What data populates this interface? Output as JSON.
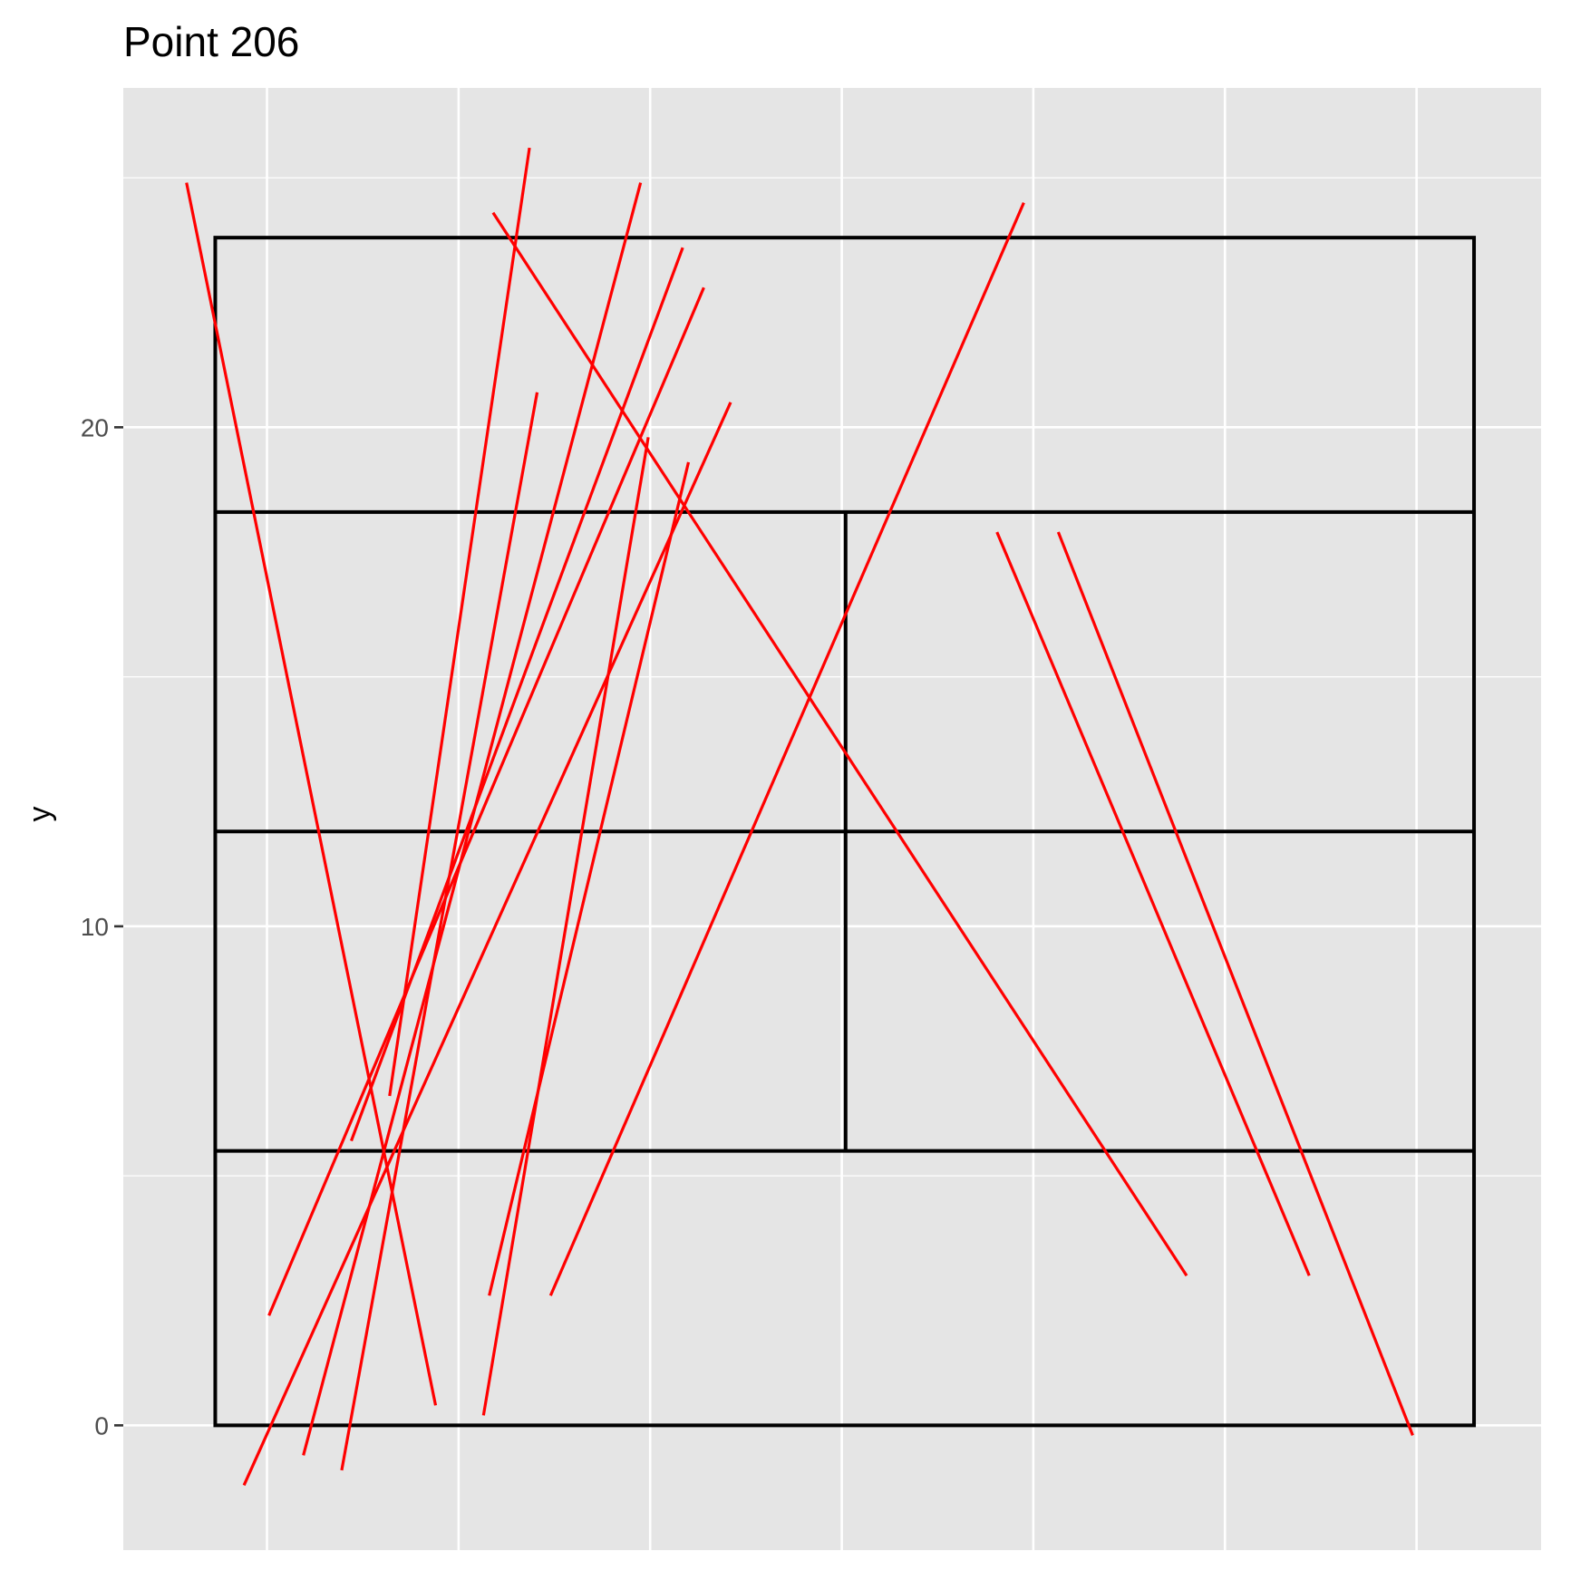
{
  "chart_data": {
    "type": "line",
    "title": "Point 206",
    "xlabel": "",
    "ylabel": "y",
    "xlim": [
      -0.75,
      6.65
    ],
    "ylim": [
      -2.5,
      26.8
    ],
    "x_gridlines": [
      0,
      1,
      2,
      3,
      4,
      5,
      6
    ],
    "y_ticks": [
      0,
      10,
      20
    ],
    "y_minor_gridlines": [
      5,
      15,
      25
    ],
    "grid": true,
    "colors": {
      "panel_background": "#e5e5e5",
      "gridline": "#ffffff",
      "frame": "#000000",
      "segment": "#ff0000",
      "tick_label": "#4d4d4d"
    },
    "frame": {
      "outer": {
        "x": [
          -0.27,
          6.3
        ],
        "y": [
          0,
          23.8
        ]
      },
      "horizontal_rules": [
        {
          "x": [
            -0.27,
            6.3
          ],
          "y": 18.3
        },
        {
          "x": [
            -0.27,
            6.3
          ],
          "y": 11.9
        },
        {
          "x": [
            -0.27,
            6.3
          ],
          "y": 5.5
        }
      ],
      "vertical_rules": [
        {
          "x": 3.02,
          "y": [
            5.5,
            18.3
          ]
        }
      ]
    },
    "series": [
      {
        "x": [
          -0.42,
          0.88
        ],
        "y": [
          24.9,
          0.4
        ]
      },
      {
        "x": [
          0.64,
          1.37
        ],
        "y": [
          6.6,
          25.6
        ]
      },
      {
        "x": [
          1.13,
          1.99
        ],
        "y": [
          0.2,
          19.8
        ]
      },
      {
        "x": [
          -0.12,
          2.42
        ],
        "y": [
          -1.2,
          20.5
        ]
      },
      {
        "x": [
          0.39,
          1.41
        ],
        "y": [
          -0.9,
          20.7
        ]
      },
      {
        "x": [
          0.19,
          1.95
        ],
        "y": [
          -0.6,
          24.9
        ]
      },
      {
        "x": [
          0.44,
          2.17
        ],
        "y": [
          5.7,
          23.6
        ]
      },
      {
        "x": [
          0.01,
          2.28
        ],
        "y": [
          2.2,
          22.8
        ]
      },
      {
        "x": [
          1.16,
          2.2
        ],
        "y": [
          2.6,
          19.3
        ]
      },
      {
        "x": [
          1.48,
          3.95
        ],
        "y": [
          2.6,
          24.5
        ]
      },
      {
        "x": [
          4.13,
          5.98
        ],
        "y": [
          17.9,
          -0.2
        ]
      },
      {
        "x": [
          1.18,
          4.8
        ],
        "y": [
          24.3,
          3.0
        ]
      },
      {
        "x": [
          3.81,
          5.44
        ],
        "y": [
          17.9,
          3.0
        ]
      }
    ]
  }
}
